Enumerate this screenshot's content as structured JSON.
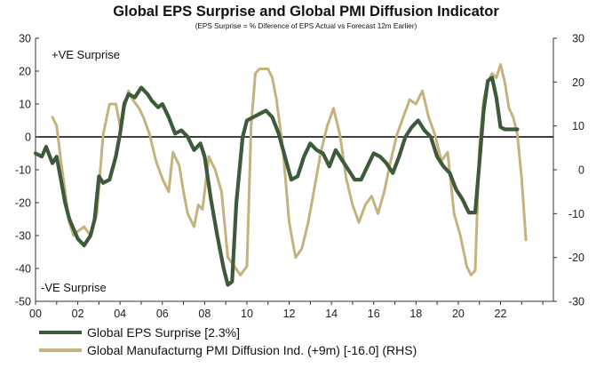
{
  "title": "Global EPS Surprise and Global PMI Diffusion Indicator",
  "subtitle": "(EPS Surprise = % Diference of EPS Actual vs Forecast 12m Earlier)",
  "annotations": {
    "positive": "+VE Surprise",
    "negative": "-VE Surprise"
  },
  "colors": {
    "eps": "#3d5a3b",
    "pmi": "#c4b27f",
    "zero_line": "#000000",
    "axis": "#333333"
  },
  "legend": [
    {
      "label": "Global EPS Surprise [2.3%]",
      "color": "#3d5a3b"
    },
    {
      "label": "Global Manufacturng PMI Diffusion Ind. (+9m) [-16.0] (RHS)",
      "color": "#c4b27f"
    }
  ],
  "chart_data": {
    "type": "line",
    "x_tick_labels": [
      "00",
      "02",
      "04",
      "06",
      "08",
      "10",
      "12",
      "14",
      "16",
      "18",
      "20",
      "22"
    ],
    "xlim": [
      2000,
      2024.5
    ],
    "ylim": [
      -50,
      30
    ],
    "ylim_right": [
      -30,
      30
    ],
    "y_ticks_left": [
      30,
      20,
      10,
      0,
      -10,
      -20,
      -30,
      -40,
      -50
    ],
    "y_ticks_right": [
      30,
      20,
      10,
      0,
      -10,
      -20,
      -30
    ],
    "grid": false,
    "legend_position": "bottom-left",
    "series": [
      {
        "name": "Global EPS Surprise [2.3%]",
        "axis": "left",
        "x": [
          2000.0,
          2000.3,
          2000.5,
          2000.8,
          2001.0,
          2001.2,
          2001.4,
          2001.6,
          2001.8,
          2002.0,
          2002.3,
          2002.6,
          2002.8,
          2003.0,
          2003.2,
          2003.5,
          2003.8,
          2004.0,
          2004.2,
          2004.4,
          2004.7,
          2005.0,
          2005.3,
          2005.5,
          2005.8,
          2006.0,
          2006.3,
          2006.6,
          2006.9,
          2007.2,
          2007.5,
          2007.8,
          2008.0,
          2008.3,
          2008.6,
          2008.9,
          2009.1,
          2009.3,
          2009.5,
          2009.8,
          2010.0,
          2010.3,
          2010.6,
          2010.9,
          2011.2,
          2011.5,
          2011.8,
          2012.1,
          2012.4,
          2012.7,
          2013.0,
          2013.3,
          2013.6,
          2013.9,
          2014.2,
          2014.5,
          2014.8,
          2015.1,
          2015.4,
          2015.7,
          2016.0,
          2016.3,
          2016.6,
          2016.9,
          2017.2,
          2017.5,
          2017.8,
          2018.1,
          2018.4,
          2018.7,
          2019.0,
          2019.3,
          2019.6,
          2019.9,
          2020.2,
          2020.5,
          2020.8,
          2021.0,
          2021.2,
          2021.4,
          2021.6,
          2021.8,
          2022.0,
          2022.2,
          2022.4,
          2022.6,
          2022.8
        ],
        "y": [
          -5,
          -6,
          -3,
          -8,
          -6,
          -13,
          -20,
          -25,
          -28,
          -31,
          -33,
          -30,
          -25,
          -12,
          -14,
          -13,
          -6,
          1,
          10,
          13,
          12,
          15,
          13,
          11,
          9,
          10,
          6,
          1,
          2,
          0,
          -4,
          -2,
          -6,
          -19,
          -30,
          -40,
          -45,
          -44,
          -20,
          0,
          5,
          6,
          7,
          8,
          6,
          1,
          -6,
          -13,
          -12,
          -6,
          -2,
          -4,
          -5,
          -9,
          -4,
          -7,
          -10,
          -13,
          -13,
          -9,
          -5,
          -6,
          -8,
          -11,
          -6,
          0,
          3,
          5,
          2,
          0,
          -6,
          -9,
          -11,
          -16,
          -19,
          -23,
          -23,
          -8,
          8,
          17,
          18,
          12,
          3,
          2.3,
          2.3,
          2.3,
          2.3
        ]
      },
      {
        "name": "Global Manufacturng PMI Diffusion Ind. (+9m) [-16.0] (RHS)",
        "axis": "right",
        "x": [
          2000.8,
          2001.0,
          2001.2,
          2001.4,
          2001.6,
          2001.8,
          2002.0,
          2002.3,
          2002.6,
          2002.9,
          2003.2,
          2003.5,
          2003.8,
          2004.0,
          2004.2,
          2004.4,
          2004.6,
          2004.9,
          2005.1,
          2005.4,
          2005.7,
          2006.0,
          2006.3,
          2006.5,
          2006.8,
          2007.0,
          2007.2,
          2007.5,
          2007.7,
          2007.9,
          2008.2,
          2008.5,
          2008.8,
          2009.1,
          2009.4,
          2009.7,
          2010.0,
          2010.2,
          2010.4,
          2010.6,
          2010.8,
          2011.0,
          2011.2,
          2011.4,
          2011.7,
          2012.0,
          2012.3,
          2012.6,
          2012.9,
          2013.2,
          2013.5,
          2013.8,
          2014.1,
          2014.4,
          2014.7,
          2015.0,
          2015.3,
          2015.6,
          2015.9,
          2016.2,
          2016.5,
          2016.8,
          2017.1,
          2017.4,
          2017.7,
          2018.0,
          2018.3,
          2018.6,
          2018.9,
          2019.2,
          2019.5,
          2019.8,
          2020.1,
          2020.4,
          2020.6,
          2020.8,
          2021.0,
          2021.2,
          2021.4,
          2021.6,
          2021.8,
          2022.0,
          2022.2,
          2022.4,
          2022.6,
          2022.8,
          2023.0,
          2023.2
        ],
        "y": [
          12,
          10,
          2,
          -5,
          -12,
          -15,
          -14,
          -13,
          -15,
          -10,
          8,
          15,
          15,
          10,
          14,
          18,
          16,
          14,
          12,
          8,
          2,
          -2,
          -5,
          4,
          1,
          -5,
          -10,
          -13,
          -8,
          -9,
          3,
          0,
          -5,
          -20,
          -22,
          -24,
          -22,
          10,
          22,
          23,
          23,
          23,
          21,
          16,
          5,
          -12,
          -20,
          -18,
          -12,
          -4,
          4,
          10,
          14,
          8,
          -2,
          -8,
          -12,
          -8,
          -6,
          -10,
          -5,
          2,
          8,
          12,
          16,
          15,
          18,
          12,
          8,
          2,
          4,
          -10,
          -15,
          -22,
          -24,
          -23,
          5,
          16,
          20,
          22,
          21,
          24,
          20,
          14,
          12,
          8,
          -2,
          -16
        ]
      }
    ]
  }
}
